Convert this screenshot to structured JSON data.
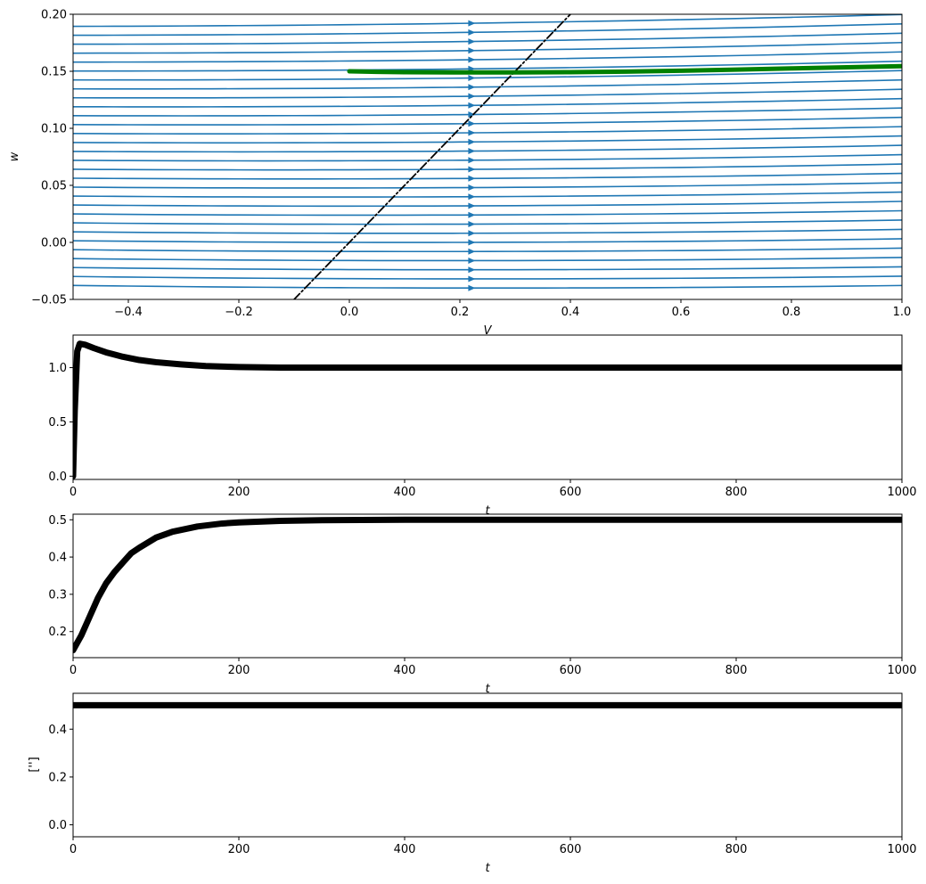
{
  "chart_data": [
    {
      "type": "streamplot",
      "xlabel": "V",
      "ylabel": "w",
      "xlim": [
        -0.5,
        1.0
      ],
      "ylim": [
        -0.05,
        0.2
      ],
      "xticks": [
        -0.4,
        -0.2,
        0.0,
        0.2,
        0.4,
        0.6,
        0.8,
        1.0
      ],
      "xtick_labels": [
        "−0.4",
        "−0.2",
        "0.0",
        "0.2",
        "0.4",
        "0.6",
        "0.8",
        "1.0"
      ],
      "yticks": [
        -0.05,
        0.0,
        0.05,
        0.1,
        0.15,
        0.2
      ],
      "ytick_labels": [
        "−0.05",
        "0.00",
        "0.05",
        "0.10",
        "0.15",
        "0.20"
      ],
      "grid": false,
      "stream_color": "#1f77b4",
      "stream_levels_w": [
        -0.04,
        -0.032,
        -0.024,
        -0.016,
        -0.008,
        0.0,
        0.008,
        0.016,
        0.024,
        0.032,
        0.04,
        0.048,
        0.056,
        0.064,
        0.072,
        0.08,
        0.088,
        0.096,
        0.104,
        0.112,
        0.12,
        0.128,
        0.136,
        0.144,
        0.152,
        0.16,
        0.168,
        0.176,
        0.184,
        0.192
      ],
      "nullcline": {
        "style": "dashdot",
        "color": "#000000",
        "x": [
          -0.1,
          0.4
        ],
        "y": [
          -0.05,
          0.2
        ]
      },
      "trajectory": {
        "color": "#008000",
        "x": [
          0.0,
          0.05,
          0.1,
          0.2,
          0.3,
          0.4,
          0.5,
          0.6,
          0.7,
          0.8,
          0.9,
          1.0
        ],
        "y": [
          0.15,
          0.1495,
          0.1492,
          0.149,
          0.149,
          0.1492,
          0.1497,
          0.1505,
          0.1515,
          0.1525,
          0.1535,
          0.1545
        ]
      }
    },
    {
      "type": "line",
      "xlabel": "t",
      "ylabel": "",
      "xlim": [
        0,
        1000
      ],
      "ylim": [
        -0.03,
        1.3
      ],
      "xticks": [
        0,
        200,
        400,
        600,
        800,
        1000
      ],
      "xtick_labels": [
        "0",
        "200",
        "400",
        "600",
        "800",
        "1000"
      ],
      "yticks": [
        0.0,
        0.5,
        1.0
      ],
      "ytick_labels": [
        "0.0",
        "0.5",
        "1.0"
      ],
      "line_color": "#000000",
      "x": [
        0,
        2,
        5,
        8,
        15,
        25,
        40,
        60,
        80,
        100,
        130,
        160,
        200,
        250,
        300,
        400,
        600,
        800,
        1000
      ],
      "y": [
        0.0,
        0.6,
        1.15,
        1.22,
        1.21,
        1.18,
        1.14,
        1.1,
        1.07,
        1.05,
        1.03,
        1.015,
        1.005,
        1.0,
        1.0,
        1.0,
        1.0,
        1.0,
        1.0
      ]
    },
    {
      "type": "line",
      "xlabel": "t",
      "ylabel": "",
      "xlim": [
        0,
        1000
      ],
      "ylim": [
        0.13,
        0.515
      ],
      "xticks": [
        0,
        200,
        400,
        600,
        800,
        1000
      ],
      "xtick_labels": [
        "0",
        "200",
        "400",
        "600",
        "800",
        "1000"
      ],
      "yticks": [
        0.2,
        0.3,
        0.4,
        0.5
      ],
      "ytick_labels": [
        "0.2",
        "0.3",
        "0.4",
        "0.5"
      ],
      "line_color": "#000000",
      "x": [
        0,
        10,
        20,
        30,
        40,
        50,
        60,
        70,
        80,
        100,
        120,
        150,
        180,
        200,
        250,
        300,
        400,
        600,
        800,
        1000
      ],
      "y": [
        0.15,
        0.19,
        0.24,
        0.29,
        0.33,
        0.36,
        0.385,
        0.41,
        0.425,
        0.452,
        0.468,
        0.482,
        0.49,
        0.493,
        0.497,
        0.499,
        0.5,
        0.5,
        0.5,
        0.5
      ]
    },
    {
      "type": "line",
      "xlabel": "t",
      "ylabel": "['']",
      "xlim": [
        0,
        1000
      ],
      "ylim": [
        -0.05,
        0.55
      ],
      "xticks": [
        0,
        200,
        400,
        600,
        800,
        1000
      ],
      "xtick_labels": [
        "0",
        "200",
        "400",
        "600",
        "800",
        "1000"
      ],
      "yticks": [
        0.0,
        0.2,
        0.4
      ],
      "ytick_labels": [
        "0.0",
        "0.2",
        "0.4"
      ],
      "line_color": "#000000",
      "x": [
        0,
        1000
      ],
      "y": [
        0.5,
        0.5
      ]
    }
  ]
}
